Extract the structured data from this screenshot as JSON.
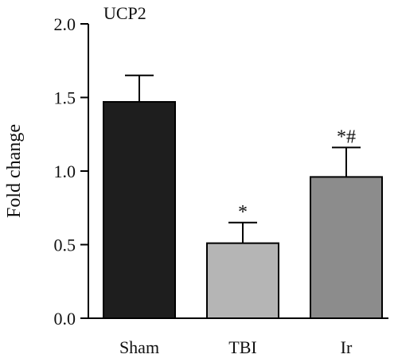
{
  "chart_data": {
    "type": "bar",
    "title": "UCP2",
    "xlabel": "",
    "ylabel": "Fold change",
    "ylim": [
      0,
      2.0
    ],
    "yticks": [
      0.0,
      0.5,
      1.0,
      1.5,
      2.0
    ],
    "ytick_labels": [
      "0.0",
      "0.5",
      "1.0",
      "1.5",
      "2.0"
    ],
    "categories": [
      "Sham",
      "TBI",
      "Ir"
    ],
    "values": [
      1.47,
      0.51,
      0.96
    ],
    "error_upper": [
      0.18,
      0.14,
      0.2
    ],
    "colors": [
      "#1e1e1e",
      "#b5b5b5",
      "#8c8c8c"
    ],
    "annotations": [
      "",
      "*",
      "*#"
    ],
    "grid": false,
    "legend": "none"
  }
}
